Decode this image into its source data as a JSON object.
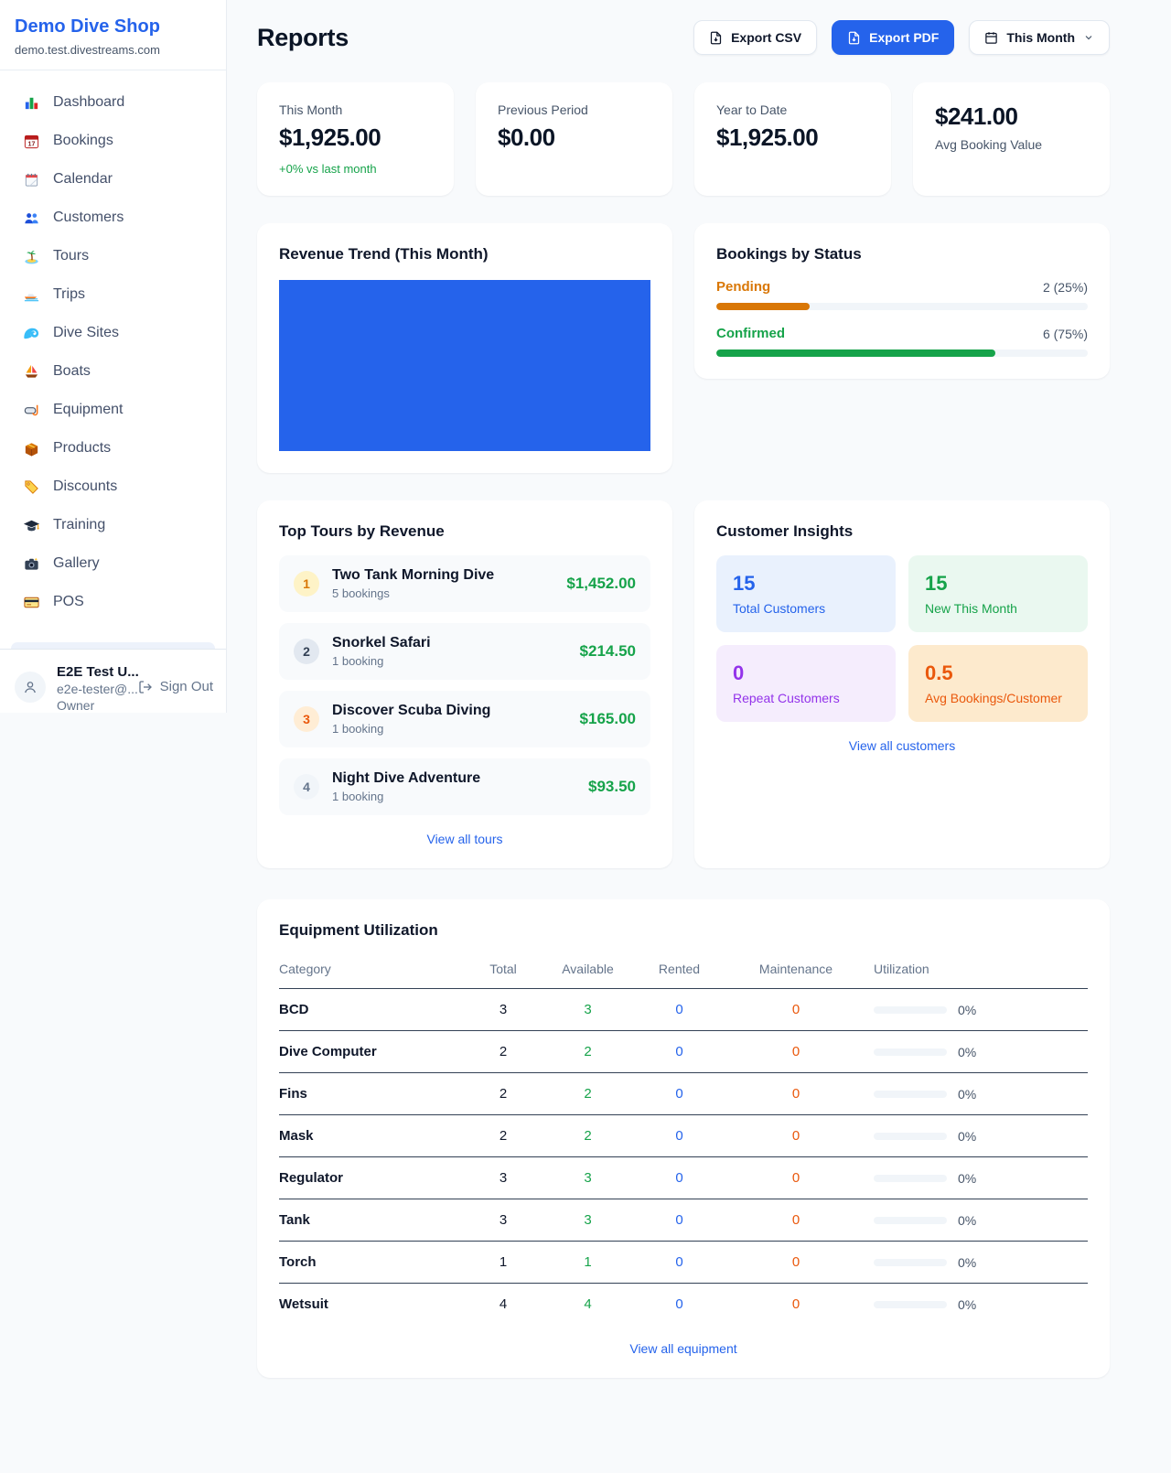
{
  "colors": {
    "accent": "#2563eb",
    "positive": "#16a34a",
    "link": "#2563eb"
  },
  "sidebar": {
    "title": "Demo Dive Shop",
    "subtitle": "demo.test.divestreams.com",
    "items": [
      {
        "label": "Dashboard",
        "icon": "bar-chart"
      },
      {
        "label": "Bookings",
        "icon": "calendar-17"
      },
      {
        "label": "Calendar",
        "icon": "spiral-calendar"
      },
      {
        "label": "Customers",
        "icon": "people"
      },
      {
        "label": "Tours",
        "icon": "island"
      },
      {
        "label": "Trips",
        "icon": "speedboat"
      },
      {
        "label": "Dive Sites",
        "icon": "wave"
      },
      {
        "label": "Boats",
        "icon": "sailboat"
      },
      {
        "label": "Equipment",
        "icon": "dive-mask"
      },
      {
        "label": "Products",
        "icon": "package"
      },
      {
        "label": "Discounts",
        "icon": "tag"
      },
      {
        "label": "Training",
        "icon": "grad-cap"
      },
      {
        "label": "Gallery",
        "icon": "camera"
      },
      {
        "label": "POS",
        "icon": "credit-card"
      }
    ],
    "user": {
      "name": "E2E Test U...",
      "email": "e2e-tester@...",
      "role": "Owner",
      "signout_label": "Sign Out"
    }
  },
  "header": {
    "title": "Reports",
    "export_csv": "Export CSV",
    "export_pdf": "Export PDF",
    "period": "This Month"
  },
  "stats": [
    {
      "label": "This Month",
      "value": "$1,925.00",
      "delta": "+0% vs last month"
    },
    {
      "label": "Previous Period",
      "value": "$0.00"
    },
    {
      "label": "Year to Date",
      "value": "$1,925.00"
    },
    {
      "label": "Avg Booking Value",
      "value": "$241.00",
      "value_first": true
    }
  ],
  "revenue": {
    "title": "Revenue Trend (This Month)",
    "fill": "#2563eb"
  },
  "status": {
    "title": "Bookings by Status",
    "rows": [
      {
        "label": "Pending",
        "value": "2 (25%)",
        "pct": 25,
        "color": "#d97706"
      },
      {
        "label": "Confirmed",
        "value": "6 (75%)",
        "pct": 75,
        "color": "#16a34a"
      }
    ]
  },
  "tours": {
    "title": "Top Tours by Revenue",
    "rows": [
      {
        "rank": "1",
        "name": "Two Tank Morning Dive",
        "bookings": "5 bookings",
        "revenue": "$1,452.00"
      },
      {
        "rank": "2",
        "name": "Snorkel Safari",
        "bookings": "1 booking",
        "revenue": "$214.50"
      },
      {
        "rank": "3",
        "name": "Discover Scuba Diving",
        "bookings": "1 booking",
        "revenue": "$165.00"
      },
      {
        "rank": "4",
        "name": "Night Dive Adventure",
        "bookings": "1 booking",
        "revenue": "$93.50"
      }
    ],
    "view_all": "View all tours"
  },
  "insights": {
    "title": "Customer Insights",
    "tiles": [
      {
        "value": "15",
        "label": "Total Customers",
        "bg": "#e9f1fd",
        "fg": "#2563eb"
      },
      {
        "value": "15",
        "label": "New This Month",
        "bg": "#eaf8f0",
        "fg": "#16a34a"
      },
      {
        "value": "0",
        "label": "Repeat Customers",
        "bg": "#f5edfd",
        "fg": "#9333ea"
      },
      {
        "value": "0.5",
        "label": "Avg Bookings/Customer",
        "bg": "#fdeacd",
        "fg": "#ea580c"
      }
    ],
    "view_all": "View all customers"
  },
  "equipment": {
    "title": "Equipment Utilization",
    "columns": [
      "Category",
      "Total",
      "Available",
      "Rented",
      "Maintenance",
      "Utilization"
    ],
    "value_colors": {
      "available": "#16a34a",
      "rented": "#2563eb",
      "maintenance": "#ea580c"
    },
    "rows": [
      [
        "BCD",
        "3",
        "3",
        "0",
        "0",
        "0%"
      ],
      [
        "Dive Computer",
        "2",
        "2",
        "0",
        "0",
        "0%"
      ],
      [
        "Fins",
        "2",
        "2",
        "0",
        "0",
        "0%"
      ],
      [
        "Mask",
        "2",
        "2",
        "0",
        "0",
        "0%"
      ],
      [
        "Regulator",
        "3",
        "3",
        "0",
        "0",
        "0%"
      ],
      [
        "Tank",
        "3",
        "3",
        "0",
        "0",
        "0%"
      ],
      [
        "Torch",
        "1",
        "1",
        "0",
        "0",
        "0%"
      ],
      [
        "Wetsuit",
        "4",
        "4",
        "0",
        "0",
        "0%"
      ]
    ],
    "view_all": "View all equipment"
  }
}
